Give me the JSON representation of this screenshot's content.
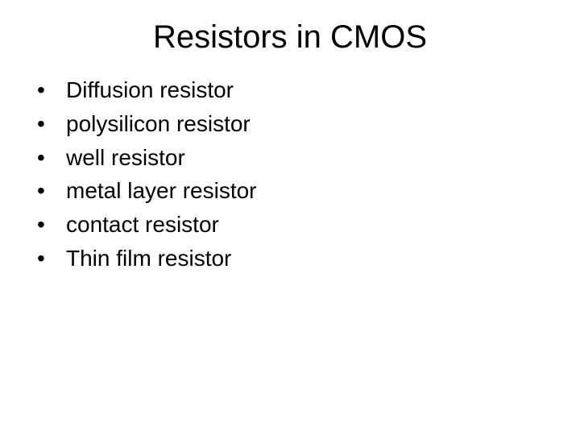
{
  "slide": {
    "title": "Resistors in CMOS",
    "title_fontsize": 40,
    "title_color": "#000000",
    "background_color": "#ffffff",
    "bullets": [
      "Diffusion resistor",
      "polysilicon resistor",
      "well resistor",
      "metal layer resistor",
      "contact resistor",
      "Thin film resistor"
    ],
    "bullet_marker": "•",
    "bullet_fontsize": 28,
    "bullet_color": "#000000",
    "font_family": "Arial"
  }
}
